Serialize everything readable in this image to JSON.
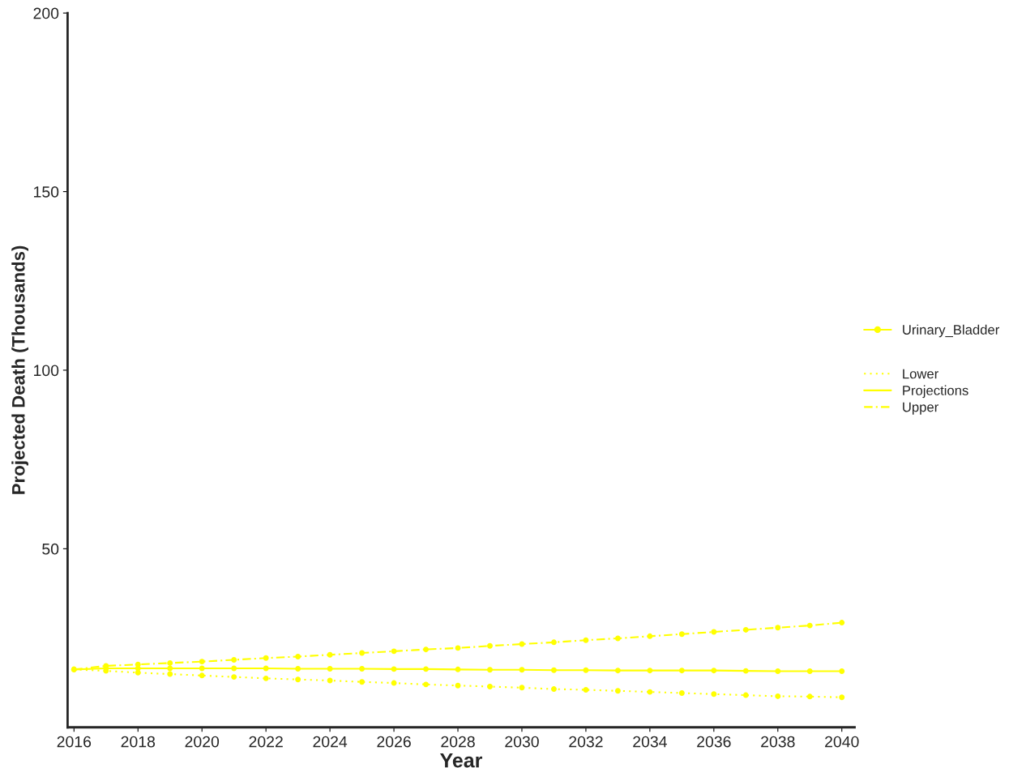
{
  "chart_data": {
    "type": "line",
    "xlabel": "Year",
    "ylabel": "Projected Death (Thousands)",
    "x": [
      2016,
      2017,
      2018,
      2019,
      2020,
      2021,
      2022,
      2023,
      2024,
      2025,
      2026,
      2027,
      2028,
      2029,
      2030,
      2031,
      2032,
      2033,
      2034,
      2035,
      2036,
      2037,
      2038,
      2039,
      2040
    ],
    "series": [
      {
        "name": "Lower",
        "color": "#ffff00",
        "line_style": "dotted",
        "values": [
          16.2,
          15.8,
          15.3,
          14.9,
          14.5,
          14.1,
          13.7,
          13.4,
          13.1,
          12.7,
          12.4,
          12.0,
          11.7,
          11.4,
          11.1,
          10.7,
          10.5,
          10.2,
          9.9,
          9.6,
          9.3,
          9.0,
          8.7,
          8.6,
          8.4
        ]
      },
      {
        "name": "Projections",
        "color": "#ffff00",
        "line_style": "solid",
        "values": [
          16.2,
          16.5,
          16.5,
          16.5,
          16.5,
          16.5,
          16.5,
          16.4,
          16.4,
          16.4,
          16.3,
          16.3,
          16.2,
          16.1,
          16.1,
          16.0,
          16.0,
          15.9,
          15.9,
          15.9,
          15.9,
          15.8,
          15.7,
          15.7,
          15.7
        ]
      },
      {
        "name": "Upper",
        "color": "#ffff00",
        "line_style": "dashdot",
        "values": [
          16.2,
          17.2,
          17.6,
          18.0,
          18.4,
          18.9,
          19.4,
          19.8,
          20.3,
          20.8,
          21.3,
          21.8,
          22.2,
          22.8,
          23.3,
          23.8,
          24.4,
          24.9,
          25.5,
          26.1,
          26.7,
          27.3,
          27.9,
          28.5,
          29.3
        ]
      }
    ],
    "annotations": [
      "Urinary_Bladder"
    ],
    "xlim": [
      2015.8,
      2040.4
    ],
    "xticks": [
      2016,
      2018,
      2020,
      2022,
      2024,
      2026,
      2028,
      2030,
      2032,
      2034,
      2036,
      2038,
      2040
    ],
    "ylim": [
      0,
      200
    ],
    "yticks": [
      50,
      100,
      150,
      200
    ],
    "marker": "circle",
    "grid": false,
    "legend": "right"
  }
}
